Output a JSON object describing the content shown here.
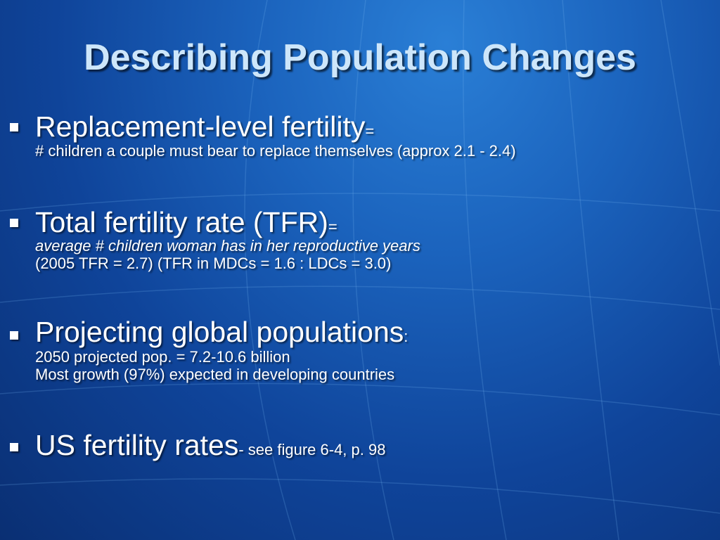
{
  "slide": {
    "title": "Describing Population Changes",
    "bullets": [
      {
        "heading": "Replacement-level fertility",
        "suffix": "=",
        "lines": [
          "# children a couple must bear to replace themselves (approx  2.1 - 2.4)"
        ]
      },
      {
        "heading": "Total fertility rate (TFR)",
        "suffix": "=",
        "lines": [
          "average # children woman has in her reproductive years",
          "(2005 TFR = 2.7) (TFR in MDCs = 1.6 : LDCs = 3.0)"
        ]
      },
      {
        "heading": "Projecting global populations",
        "suffix": ":",
        "lines": [
          "2050 projected pop. = 7.2-10.6 billion",
          "Most growth (97%) expected in developing countries"
        ]
      },
      {
        "heading": "US fertility rates",
        "suffix": "- see figure 6-4, p. 98",
        "lines": []
      }
    ]
  },
  "colors": {
    "background_center": "#2a7fd6",
    "background_edge": "#0a2f73",
    "title_text": "#cde6fa",
    "body_text": "#ffffff"
  },
  "icons": {
    "bullet": "square-bullet-icon",
    "background_pattern": "globe-grid-lines"
  }
}
